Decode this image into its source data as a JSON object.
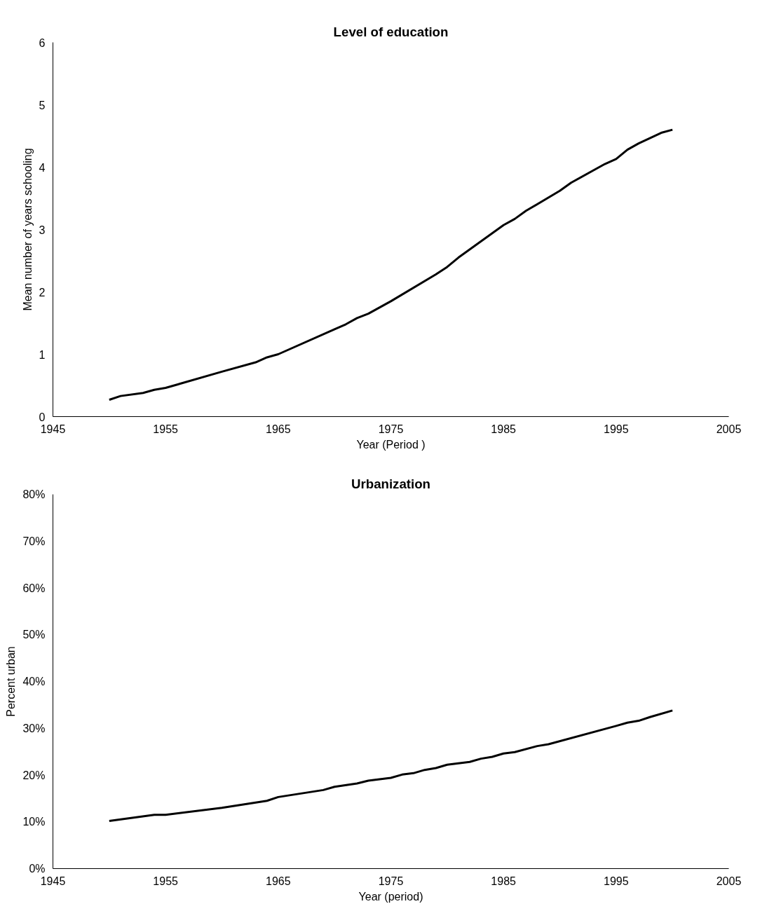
{
  "chart_data": [
    {
      "type": "line",
      "title": "Level of education",
      "xlabel": "Year (Period )",
      "ylabel": "Mean number of years schooling",
      "x": [
        1950,
        1951,
        1953,
        1954,
        1955,
        1960,
        1963,
        1964,
        1965,
        1970,
        1971,
        1972,
        1973,
        1975,
        1979,
        1980,
        1981,
        1985,
        1986,
        1987,
        1990,
        1991,
        1994,
        1995,
        1996,
        1997,
        1999,
        2000
      ],
      "series": [
        {
          "color": "#000000",
          "values": [
            0.27,
            0.33,
            0.38,
            0.43,
            0.46,
            0.72,
            0.87,
            0.95,
            1.0,
            1.4,
            1.48,
            1.58,
            1.65,
            1.85,
            2.28,
            2.4,
            2.55,
            3.07,
            3.17,
            3.3,
            3.62,
            3.75,
            4.05,
            4.13,
            4.28,
            4.38,
            4.55,
            4.6
          ]
        }
      ],
      "xlim": [
        1945,
        2005
      ],
      "xticks": [
        1945,
        1955,
        1965,
        1975,
        1985,
        1995,
        2005
      ],
      "ylim": [
        0,
        6
      ],
      "yticks": [
        0,
        1,
        2,
        3,
        4,
        5,
        6
      ],
      "grid": false,
      "marker": "none",
      "line_style": "solid"
    },
    {
      "type": "line",
      "title": "Urbanization",
      "xlabel": "Year (period)",
      "ylabel": "Percent urban",
      "x": [
        1950,
        1954,
        1955,
        1960,
        1964,
        1965,
        1969,
        1970,
        1972,
        1973,
        1975,
        1976,
        1977,
        1978,
        1979,
        1980,
        1982,
        1983,
        1984,
        1985,
        1986,
        1988,
        1989,
        1995,
        1996,
        1997,
        1998,
        2000
      ],
      "series": [
        {
          "color": "#000000",
          "values": [
            10.2,
            11.5,
            11.5,
            13.0,
            14.5,
            15.3,
            16.8,
            17.5,
            18.2,
            18.8,
            19.4,
            20.1,
            20.4,
            21.1,
            21.5,
            22.2,
            22.8,
            23.5,
            23.9,
            24.6,
            24.9,
            26.2,
            26.6,
            30.5,
            31.2,
            31.6,
            32.4,
            33.8
          ]
        }
      ],
      "xlim": [
        1945,
        2005
      ],
      "xticks": [
        1945,
        1955,
        1965,
        1975,
        1985,
        1995,
        2005
      ],
      "ylim": [
        0,
        80
      ],
      "yticks": [
        {
          "value": 0,
          "label": "0%"
        },
        {
          "value": 10,
          "label": "10%"
        },
        {
          "value": 20,
          "label": "20%"
        },
        {
          "value": 30,
          "label": "30%"
        },
        {
          "value": 40,
          "label": "40%"
        },
        {
          "value": 50,
          "label": "50%"
        },
        {
          "value": 60,
          "label": "60%"
        },
        {
          "value": 70,
          "label": "70%"
        },
        {
          "value": 80,
          "label": "80%"
        }
      ],
      "grid": false,
      "marker": "none",
      "line_style": "solid"
    }
  ]
}
